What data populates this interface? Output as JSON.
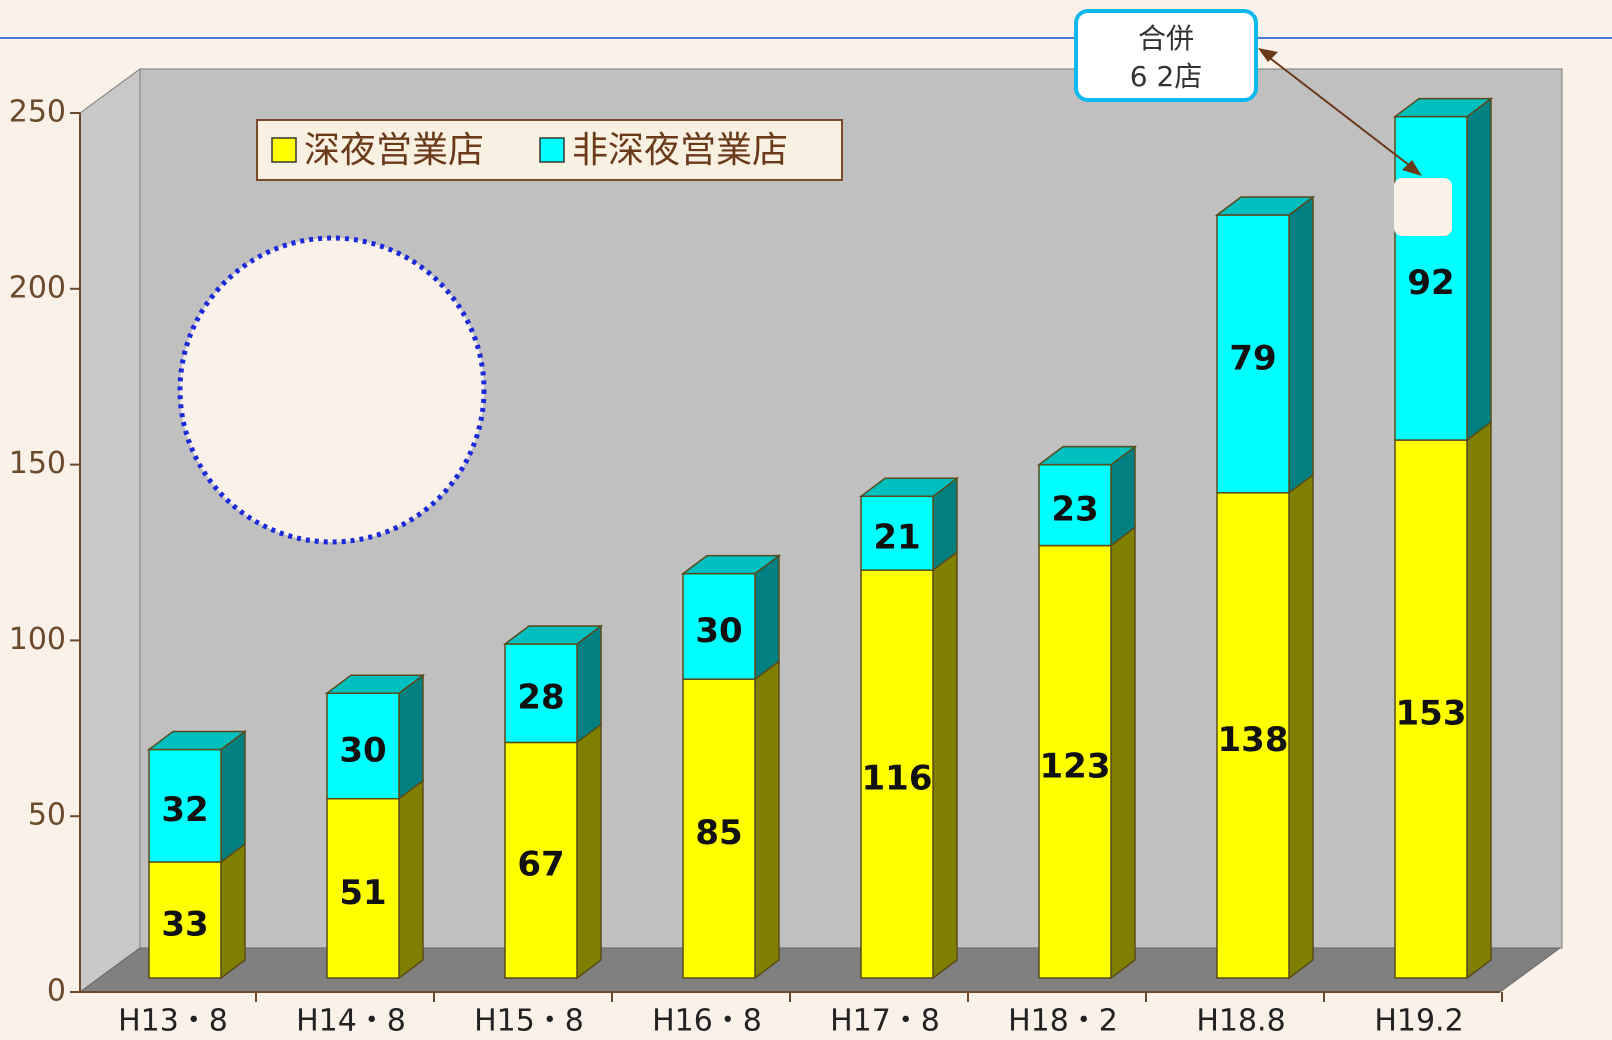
{
  "chart_data": {
    "type": "bar",
    "stacked": true,
    "categories": [
      "H13・8",
      "H14・8",
      "H15・8",
      "H16・8",
      "H17・8",
      "H18・2",
      "H18.8",
      "H19.2"
    ],
    "series": [
      {
        "name": "深夜営業店",
        "color": "#ffff00",
        "values": [
          33,
          51,
          67,
          85,
          116,
          123,
          138,
          153
        ]
      },
      {
        "name": "非深夜営業店",
        "color": "#00ffff",
        "values": [
          32,
          30,
          28,
          30,
          21,
          23,
          79,
          92
        ]
      }
    ],
    "ylim": [
      0,
      250
    ],
    "yticks": [
      0,
      50,
      100,
      150,
      200,
      250
    ],
    "grid": false,
    "legend": "top-left",
    "annotation": [
      "合併",
      "6 2店"
    ]
  }
}
